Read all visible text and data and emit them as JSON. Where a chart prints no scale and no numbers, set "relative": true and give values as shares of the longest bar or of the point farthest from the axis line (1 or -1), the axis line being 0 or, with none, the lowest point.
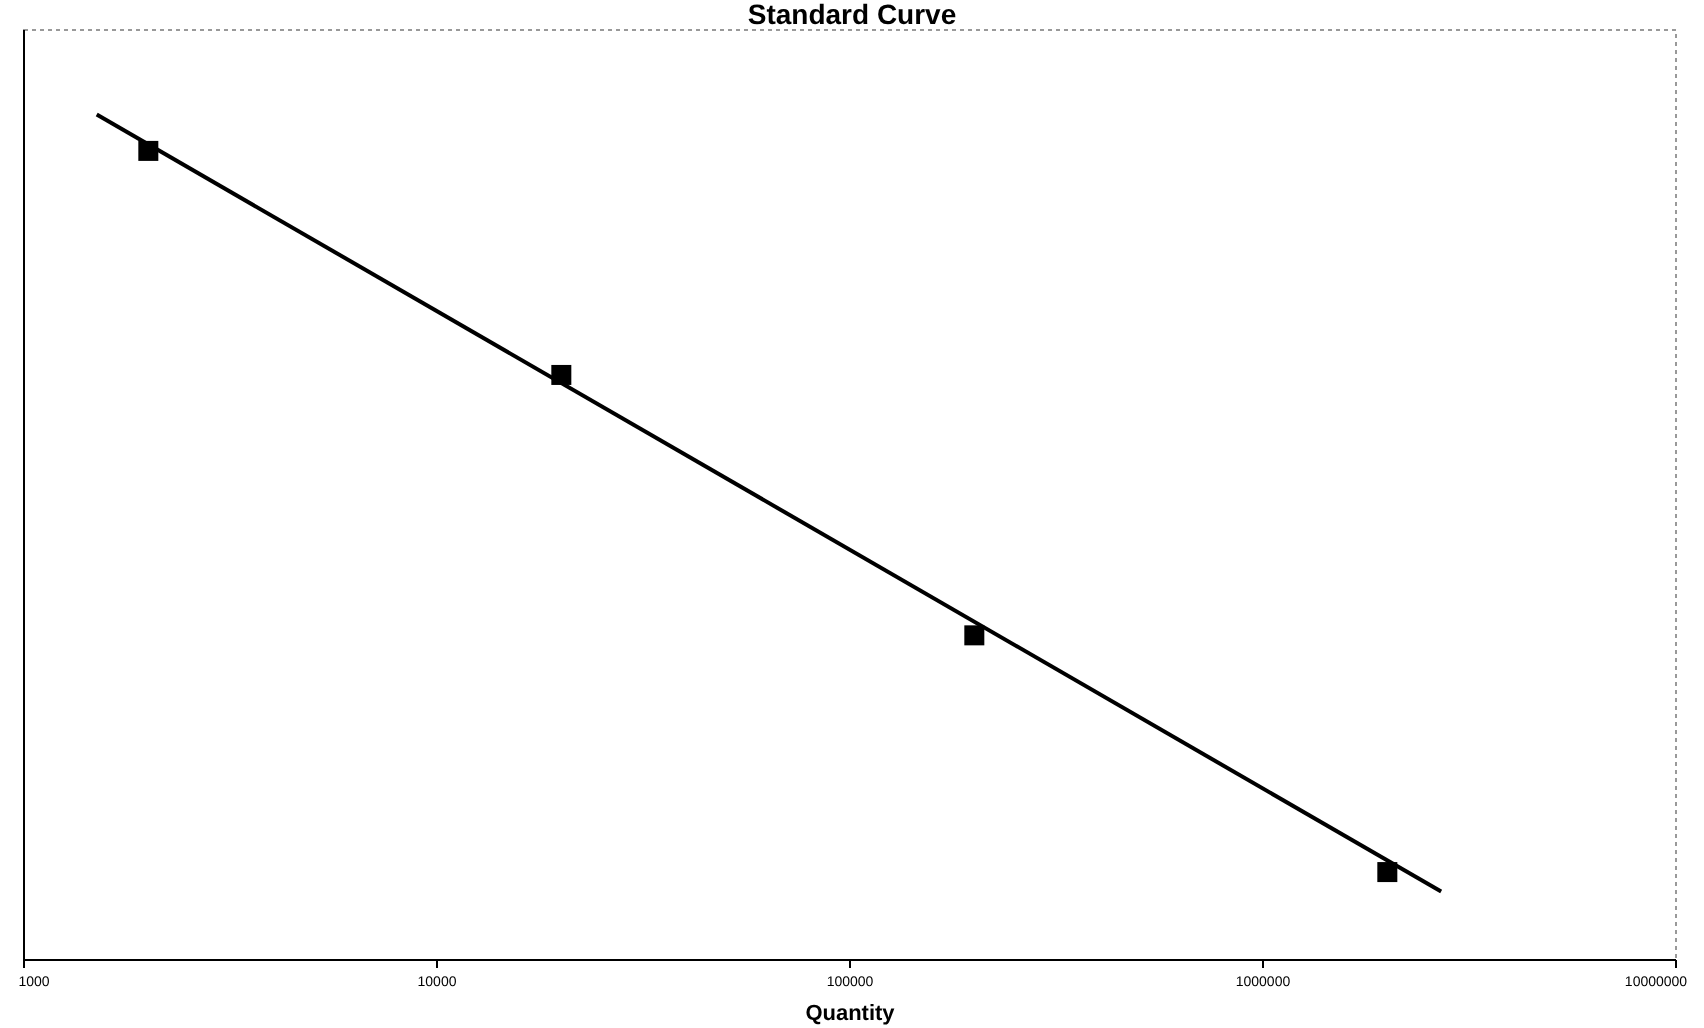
{
  "chart_data": {
    "type": "scatter",
    "title": "Standard Curve",
    "xlabel": "Quantity",
    "log": "x",
    "relative": true,
    "xlim": [
      1000,
      10000000
    ],
    "xticks": [
      1000,
      10000,
      100000,
      1000000,
      10000000
    ],
    "grid": false,
    "series": [
      {
        "type": "scatter",
        "color": "#000000",
        "marker": "square",
        "x": [
          2000,
          20000,
          200000,
          2000000
        ],
        "values": [
          0.957,
          0.692,
          0.384,
          0.104
        ]
      },
      {
        "type": "line",
        "color": "#000000",
        "marker": "none",
        "line_style": "solid",
        "x": [
          1500,
          2700000
        ],
        "values": [
          1,
          0.081
        ]
      }
    ]
  }
}
